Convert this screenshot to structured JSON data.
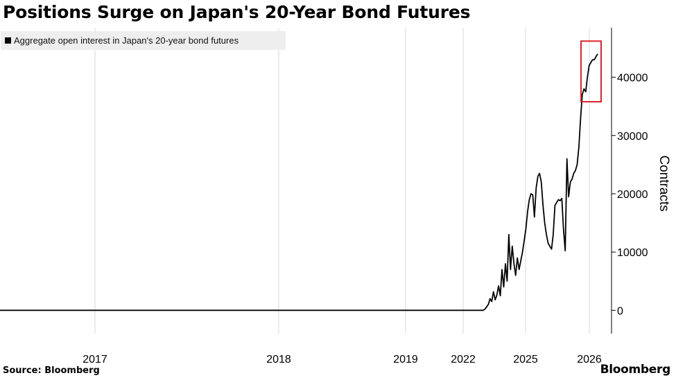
{
  "title": "Positions Surge on Japan's 20-Year Bond Futures",
  "source": "Source: Bloomberg",
  "brand": "Bloomberg",
  "colors": {
    "line": "#000000",
    "grid": "#d9d9d9",
    "highlight_box": "#e0202a",
    "legend_bg": "#eeeeee"
  },
  "chart_data": {
    "type": "line",
    "title": "Positions Surge on Japan's 20-Year Bond Futures",
    "legend": [
      "Aggregate open interest in Japan's 20-year bond futures"
    ],
    "legend_position": "top-left",
    "ylabel": "Contracts",
    "y_axis_side": "right",
    "ylim": [
      -4000,
      48500
    ],
    "yticks": [
      0,
      10000,
      20000,
      30000,
      40000
    ],
    "ytick_labels": [
      "0",
      "10000",
      "20000",
      "30000",
      "40000"
    ],
    "xticks": [
      "2017",
      "2018",
      "2019",
      "2022",
      "2025",
      "2026"
    ],
    "x_axis_note": "non-linear time axis (tick labels not evenly spaced)",
    "grid": "vertical",
    "annotation": "red box around the latest data points (about 36000 to 46000 contracts)",
    "series": [
      {
        "name": "Aggregate open interest in Japan's 20-year bond futures",
        "values": [
          0,
          0,
          0,
          200,
          600,
          1000,
          2000,
          1500,
          3200,
          1800,
          2600,
          4200,
          2500,
          7000,
          4000,
          8000,
          5000,
          13000,
          7000,
          11000,
          8000,
          6000,
          9000,
          7000,
          8500,
          10000,
          12000,
          14000,
          17000,
          19000,
          20000,
          19800,
          16000,
          21000,
          23000,
          23500,
          22000,
          18000,
          15000,
          13000,
          11500,
          11000,
          10500,
          13000,
          18000,
          18500,
          19000,
          18800,
          19200,
          14000,
          10200,
          26000,
          19500,
          22000,
          22500,
          23500,
          24000,
          25000,
          28000,
          33000,
          37000,
          38000,
          37500,
          40000,
          42000,
          42500,
          43000,
          43000,
          43500,
          44000
        ]
      }
    ]
  }
}
